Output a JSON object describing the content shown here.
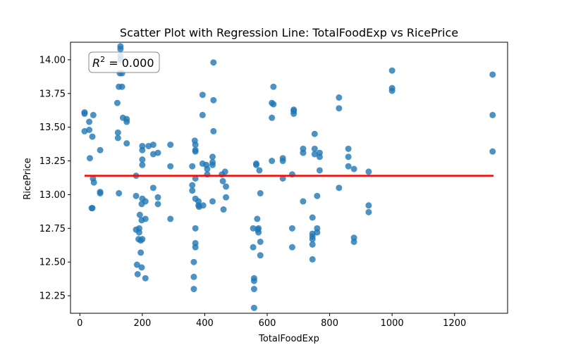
{
  "chart_data": {
    "type": "scatter",
    "title": "Scatter Plot with Regression Line: TotalFoodExp vs RicePrice",
    "xlabel": "TotalFoodExp",
    "ylabel": "RicePrice",
    "xlim": [
      -30,
      1370
    ],
    "ylim": [
      12.12,
      14.13
    ],
    "xticks": [
      0,
      200,
      400,
      600,
      800,
      1000,
      1200
    ],
    "yticks": [
      12.25,
      12.5,
      12.75,
      13.0,
      13.25,
      13.5,
      13.75,
      14.0
    ],
    "xtick_labels": [
      "0",
      "200",
      "400",
      "600",
      "800",
      "1000",
      "1200"
    ],
    "ytick_labels": [
      "12.25",
      "12.50",
      "12.75",
      "13.00",
      "13.25",
      "13.50",
      "13.75",
      "14.00"
    ],
    "grid": false,
    "annotation": {
      "prefix": "R",
      "superscript": "2",
      "text": " = 0.000"
    },
    "point_color": "#1f77b4",
    "line_color": "#ff0000",
    "regression": {
      "x": [
        15,
        1325
      ],
      "y": [
        13.14,
        13.14
      ]
    },
    "points": [
      {
        "x": 15,
        "y": 13.61
      },
      {
        "x": 15,
        "y": 13.6
      },
      {
        "x": 15,
        "y": 13.47
      },
      {
        "x": 30,
        "y": 13.54
      },
      {
        "x": 30,
        "y": 13.48
      },
      {
        "x": 32,
        "y": 13.27
      },
      {
        "x": 38,
        "y": 12.9
      },
      {
        "x": 40,
        "y": 12.9
      },
      {
        "x": 40,
        "y": 13.43
      },
      {
        "x": 43,
        "y": 13.59
      },
      {
        "x": 45,
        "y": 13.09
      },
      {
        "x": 42,
        "y": 13.12
      },
      {
        "x": 65,
        "y": 13.33
      },
      {
        "x": 65,
        "y": 13.01
      },
      {
        "x": 65,
        "y": 13.02
      },
      {
        "x": 120,
        "y": 13.68
      },
      {
        "x": 122,
        "y": 13.46
      },
      {
        "x": 122,
        "y": 13.42
      },
      {
        "x": 125,
        "y": 13.8
      },
      {
        "x": 125,
        "y": 13.01
      },
      {
        "x": 128,
        "y": 13.9
      },
      {
        "x": 130,
        "y": 14.1
      },
      {
        "x": 130,
        "y": 14.08
      },
      {
        "x": 130,
        "y": 14.03
      },
      {
        "x": 130,
        "y": 14.0
      },
      {
        "x": 135,
        "y": 13.8
      },
      {
        "x": 135,
        "y": 13.9
      },
      {
        "x": 138,
        "y": 13.57
      },
      {
        "x": 150,
        "y": 13.56
      },
      {
        "x": 150,
        "y": 13.54
      },
      {
        "x": 150,
        "y": 13.38
      },
      {
        "x": 180,
        "y": 13.14
      },
      {
        "x": 180,
        "y": 12.99
      },
      {
        "x": 180,
        "y": 12.74
      },
      {
        "x": 183,
        "y": 12.48
      },
      {
        "x": 185,
        "y": 12.41
      },
      {
        "x": 188,
        "y": 12.67
      },
      {
        "x": 190,
        "y": 12.75
      },
      {
        "x": 190,
        "y": 12.72
      },
      {
        "x": 192,
        "y": 12.85
      },
      {
        "x": 195,
        "y": 12.66
      },
      {
        "x": 195,
        "y": 12.57
      },
      {
        "x": 198,
        "y": 12.46
      },
      {
        "x": 198,
        "y": 12.81
      },
      {
        "x": 198,
        "y": 12.93
      },
      {
        "x": 200,
        "y": 12.67
      },
      {
        "x": 200,
        "y": 12.97
      },
      {
        "x": 200,
        "y": 13.36
      },
      {
        "x": 200,
        "y": 13.33
      },
      {
        "x": 200,
        "y": 13.26
      },
      {
        "x": 200,
        "y": 13.22
      },
      {
        "x": 210,
        "y": 12.82
      },
      {
        "x": 210,
        "y": 12.95
      },
      {
        "x": 210,
        "y": 12.38
      },
      {
        "x": 220,
        "y": 13.36
      },
      {
        "x": 235,
        "y": 13.3
      },
      {
        "x": 235,
        "y": 13.37
      },
      {
        "x": 235,
        "y": 13.05
      },
      {
        "x": 250,
        "y": 13.31
      },
      {
        "x": 250,
        "y": 12.98
      },
      {
        "x": 250,
        "y": 12.93
      },
      {
        "x": 290,
        "y": 13.37
      },
      {
        "x": 290,
        "y": 13.21
      },
      {
        "x": 290,
        "y": 12.82
      },
      {
        "x": 360,
        "y": 13.21
      },
      {
        "x": 360,
        "y": 13.07
      },
      {
        "x": 360,
        "y": 13.03
      },
      {
        "x": 365,
        "y": 12.5
      },
      {
        "x": 365,
        "y": 12.39
      },
      {
        "x": 365,
        "y": 12.3
      },
      {
        "x": 368,
        "y": 13.4
      },
      {
        "x": 370,
        "y": 13.37
      },
      {
        "x": 370,
        "y": 13.33
      },
      {
        "x": 370,
        "y": 13.32
      },
      {
        "x": 370,
        "y": 13.12
      },
      {
        "x": 370,
        "y": 12.97
      },
      {
        "x": 370,
        "y": 12.75
      },
      {
        "x": 370,
        "y": 12.64
      },
      {
        "x": 370,
        "y": 12.61
      },
      {
        "x": 380,
        "y": 12.95
      },
      {
        "x": 380,
        "y": 12.92
      },
      {
        "x": 382,
        "y": 12.91
      },
      {
        "x": 393,
        "y": 13.74
      },
      {
        "x": 393,
        "y": 13.59
      },
      {
        "x": 393,
        "y": 13.23
      },
      {
        "x": 395,
        "y": 12.92
      },
      {
        "x": 405,
        "y": 13.22
      },
      {
        "x": 408,
        "y": 13.19
      },
      {
        "x": 408,
        "y": 13.15
      },
      {
        "x": 425,
        "y": 13.28
      },
      {
        "x": 425,
        "y": 13.24
      },
      {
        "x": 425,
        "y": 13.22
      },
      {
        "x": 425,
        "y": 12.95
      },
      {
        "x": 428,
        "y": 13.98
      },
      {
        "x": 428,
        "y": 13.7
      },
      {
        "x": 428,
        "y": 13.47
      },
      {
        "x": 455,
        "y": 13.15
      },
      {
        "x": 458,
        "y": 13.1
      },
      {
        "x": 460,
        "y": 12.89
      },
      {
        "x": 465,
        "y": 13.17
      },
      {
        "x": 468,
        "y": 13.06
      },
      {
        "x": 468,
        "y": 12.98
      },
      {
        "x": 555,
        "y": 12.75
      },
      {
        "x": 555,
        "y": 12.61
      },
      {
        "x": 558,
        "y": 12.38
      },
      {
        "x": 558,
        "y": 12.36
      },
      {
        "x": 558,
        "y": 12.3
      },
      {
        "x": 558,
        "y": 12.16
      },
      {
        "x": 565,
        "y": 13.23
      },
      {
        "x": 565,
        "y": 13.22
      },
      {
        "x": 568,
        "y": 12.82
      },
      {
        "x": 570,
        "y": 12.74
      },
      {
        "x": 572,
        "y": 12.75
      },
      {
        "x": 572,
        "y": 12.72
      },
      {
        "x": 575,
        "y": 13.18
      },
      {
        "x": 578,
        "y": 13.01
      },
      {
        "x": 578,
        "y": 12.65
      },
      {
        "x": 578,
        "y": 12.55
      },
      {
        "x": 615,
        "y": 13.68
      },
      {
        "x": 615,
        "y": 13.57
      },
      {
        "x": 615,
        "y": 13.25
      },
      {
        "x": 620,
        "y": 13.8
      },
      {
        "x": 620,
        "y": 13.67
      },
      {
        "x": 650,
        "y": 13.27
      },
      {
        "x": 650,
        "y": 13.25
      },
      {
        "x": 650,
        "y": 13.12
      },
      {
        "x": 680,
        "y": 13.15
      },
      {
        "x": 680,
        "y": 12.75
      },
      {
        "x": 680,
        "y": 12.61
      },
      {
        "x": 685,
        "y": 13.63
      },
      {
        "x": 685,
        "y": 13.62
      },
      {
        "x": 685,
        "y": 13.6
      },
      {
        "x": 715,
        "y": 13.34
      },
      {
        "x": 715,
        "y": 13.31
      },
      {
        "x": 715,
        "y": 12.95
      },
      {
        "x": 745,
        "y": 12.71
      },
      {
        "x": 745,
        "y": 12.69
      },
      {
        "x": 745,
        "y": 12.83
      },
      {
        "x": 745,
        "y": 12.67
      },
      {
        "x": 745,
        "y": 12.63
      },
      {
        "x": 745,
        "y": 12.52
      },
      {
        "x": 752,
        "y": 13.45
      },
      {
        "x": 752,
        "y": 13.34
      },
      {
        "x": 752,
        "y": 13.3
      },
      {
        "x": 760,
        "y": 12.99
      },
      {
        "x": 760,
        "y": 12.75
      },
      {
        "x": 760,
        "y": 12.72
      },
      {
        "x": 768,
        "y": 13.31
      },
      {
        "x": 768,
        "y": 13.28
      },
      {
        "x": 768,
        "y": 13.18
      },
      {
        "x": 830,
        "y": 13.72
      },
      {
        "x": 830,
        "y": 13.64
      },
      {
        "x": 830,
        "y": 13.05
      },
      {
        "x": 860,
        "y": 13.34
      },
      {
        "x": 860,
        "y": 13.28
      },
      {
        "x": 860,
        "y": 13.21
      },
      {
        "x": 878,
        "y": 13.19
      },
      {
        "x": 878,
        "y": 12.68
      },
      {
        "x": 878,
        "y": 12.65
      },
      {
        "x": 925,
        "y": 13.17
      },
      {
        "x": 925,
        "y": 12.92
      },
      {
        "x": 925,
        "y": 12.87
      },
      {
        "x": 1000,
        "y": 13.92
      },
      {
        "x": 1000,
        "y": 13.79
      },
      {
        "x": 1000,
        "y": 13.77
      },
      {
        "x": 1322,
        "y": 13.89
      },
      {
        "x": 1322,
        "y": 13.59
      },
      {
        "x": 1322,
        "y": 13.32
      }
    ]
  }
}
